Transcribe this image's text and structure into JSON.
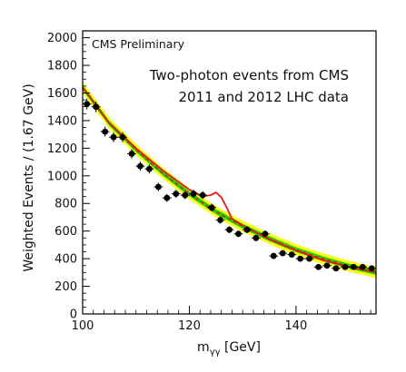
{
  "chart_data": {
    "type": "scatter",
    "preliminary_label": "CMS Preliminary",
    "annotation_lines": [
      "Two-photon events from CMS",
      "2011 and 2012 LHC data"
    ],
    "xlabel_main": "m",
    "xlabel_sub": "γγ",
    "xlabel_unit": " [GeV]",
    "ylabel": "Weighted Events / (1.67 GeV)",
    "xlim": [
      100,
      155
    ],
    "ylim": [
      0,
      2050
    ],
    "x_ticks": [
      100,
      120,
      140
    ],
    "y_ticks": [
      0,
      200,
      400,
      600,
      800,
      1000,
      1200,
      1400,
      1600,
      1800,
      2000
    ],
    "x_bin_half_width": 0.835,
    "series": [
      {
        "role": "data-points",
        "x": [
          100.8,
          102.5,
          104.2,
          105.8,
          107.5,
          109.2,
          110.8,
          112.5,
          114.2,
          115.8,
          117.5,
          119.2,
          120.8,
          122.5,
          124.2,
          125.8,
          127.5,
          129.2,
          130.8,
          132.5,
          134.2,
          135.8,
          137.5,
          139.2,
          140.8,
          142.5,
          144.2,
          145.8,
          147.5,
          149.2,
          150.8,
          152.5,
          154.2
        ],
        "y": [
          1520,
          1500,
          1320,
          1280,
          1280,
          1160,
          1070,
          1050,
          920,
          840,
          870,
          860,
          870,
          860,
          770,
          680,
          610,
          580,
          610,
          550,
          580,
          420,
          440,
          430,
          400,
          400,
          340,
          350,
          330,
          340,
          340,
          340,
          330
        ],
        "y_err": [
          39,
          39,
          36,
          36,
          36,
          34,
          33,
          32,
          30,
          29,
          29,
          29,
          29,
          29,
          28,
          26,
          25,
          24,
          25,
          23,
          24,
          20,
          21,
          21,
          20,
          20,
          18,
          19,
          18,
          18,
          18,
          18,
          18
        ],
        "color": "#000000"
      },
      {
        "role": "signal-plus-background-fit",
        "color": "#e41a1c",
        "x": [
          100,
          105,
          110,
          115,
          120,
          122,
          123,
          124,
          125,
          126,
          127,
          128,
          130,
          135,
          140,
          145,
          150,
          155
        ],
        "y": [
          1640,
          1380,
          1200,
          1040,
          900,
          860,
          855,
          860,
          880,
          845,
          770,
          690,
          640,
          540,
          460,
          390,
          340,
          300
        ]
      },
      {
        "role": "background-fit",
        "color": "#e41a1c",
        "dashed": true,
        "x": [
          100,
          105,
          110,
          115,
          120,
          125,
          130,
          135,
          140,
          145,
          150,
          155
        ],
        "y": [
          1640,
          1380,
          1190,
          1020,
          870,
          740,
          635,
          545,
          465,
          400,
          345,
          300
        ]
      },
      {
        "role": "uncertainty-band-2sigma",
        "color": "#ffff00",
        "half_width": 40
      },
      {
        "role": "uncertainty-band-1sigma",
        "color": "#00cc00",
        "half_width": 18
      }
    ],
    "grid": false
  }
}
